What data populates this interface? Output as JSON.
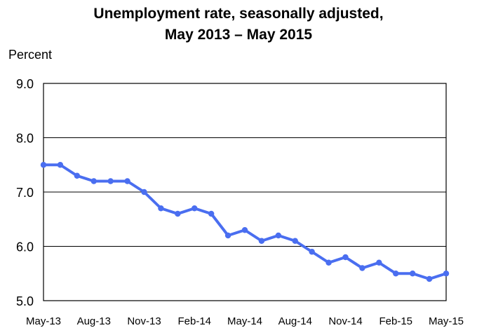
{
  "chart_data": {
    "type": "line",
    "title_line1": "Unemployment rate, seasonally adjusted,",
    "title_line2": "May 2013 – May 2015",
    "ylabel": "Percent",
    "xlabel": "",
    "ylim": [
      5.0,
      9.0
    ],
    "yticks": [
      "5.0",
      "6.0",
      "7.0",
      "8.0",
      "9.0"
    ],
    "grid": true,
    "line_color": "#4a6ef0",
    "months": [
      "May-13",
      "Jun-13",
      "Jul-13",
      "Aug-13",
      "Sep-13",
      "Oct-13",
      "Nov-13",
      "Dec-13",
      "Jan-14",
      "Feb-14",
      "Mar-14",
      "Apr-14",
      "May-14",
      "Jun-14",
      "Jul-14",
      "Aug-14",
      "Sep-14",
      "Oct-14",
      "Nov-14",
      "Dec-14",
      "Jan-15",
      "Feb-15",
      "Mar-15",
      "Apr-15",
      "May-15"
    ],
    "xtick_labels": [
      "May-13",
      "Aug-13",
      "Nov-13",
      "Feb-14",
      "May-14",
      "Aug-14",
      "Nov-14",
      "Feb-15",
      "May-15"
    ],
    "values": [
      7.5,
      7.5,
      7.3,
      7.2,
      7.2,
      7.2,
      7.0,
      6.7,
      6.6,
      6.7,
      6.6,
      6.2,
      6.3,
      6.1,
      6.2,
      6.1,
      5.9,
      5.7,
      5.8,
      5.6,
      5.7,
      5.5,
      5.5,
      5.4,
      5.5
    ]
  }
}
